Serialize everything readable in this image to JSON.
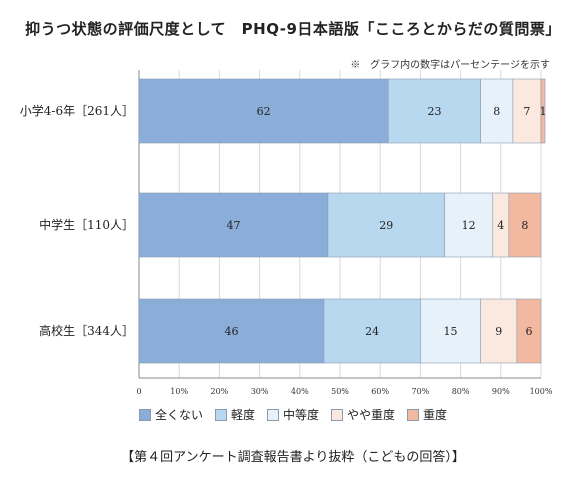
{
  "title": "抑うつ状態の評価尺度として　PHQ-9日本語版「こころとからだの質問票」",
  "note": "※　グラフ内の数字はパーセンテージを示す",
  "source": "【第４回アンケート調査報告書より抜粋（こどもの回答）】",
  "chart_data": {
    "type": "bar",
    "orientation": "horizontal",
    "stacked": true,
    "categories": [
      "小学4-6年［261人］",
      "中学生［110人］",
      "高校生［344人］"
    ],
    "series": [
      {
        "name": "全くない",
        "color": "#8aaed8",
        "values": [
          62,
          47,
          46
        ]
      },
      {
        "name": "軽度",
        "color": "#b8d8ef",
        "values": [
          23,
          29,
          24
        ]
      },
      {
        "name": "中等度",
        "color": "#e6f1fa",
        "values": [
          8,
          12,
          15
        ]
      },
      {
        "name": "やや重度",
        "color": "#fbe8de",
        "values": [
          7,
          4,
          9
        ]
      },
      {
        "name": "重度",
        "color": "#f2b8a0",
        "values": [
          1,
          8,
          6
        ]
      }
    ],
    "xlim": [
      0,
      100
    ],
    "xticks": [
      "0",
      "10%",
      "20%",
      "30%",
      "40%",
      "50%",
      "60%",
      "70%",
      "80%",
      "90%",
      "100%"
    ],
    "grid": true,
    "legend_position": "bottom"
  }
}
